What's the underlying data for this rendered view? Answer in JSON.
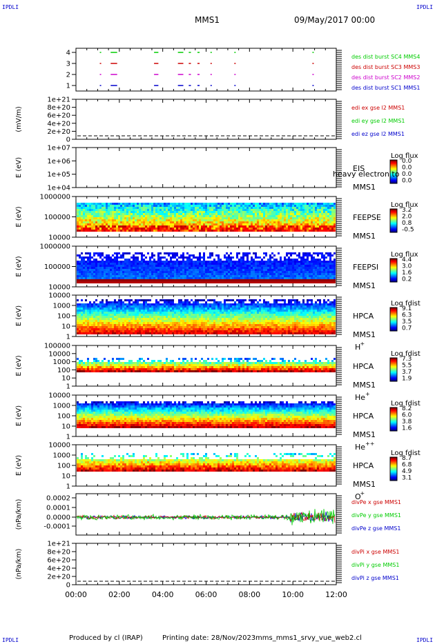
{
  "header": {
    "corner_label": "IPDLI",
    "spacecraft": "MMS1",
    "datetime": "09/May/2017 00:00"
  },
  "footer": {
    "produced_by": "Produced by cl (IRAP)",
    "printing_date": "Printing date: 28/Nov/2023",
    "filename": "mms_mms1_srvy_vue_web2.cl"
  },
  "colors": {
    "red": "#cc0000",
    "magenta": "#cc00cc",
    "green": "#00cc00",
    "blue": "#0000cc",
    "fill_blue": "#0000ff",
    "dark_red": "#990000"
  },
  "chart_data": {
    "x_axis": {
      "type": "time",
      "range": [
        "00:00",
        "12:00"
      ],
      "tick_labels": [
        "00:00",
        "02:00",
        "04:00",
        "06:00",
        "08:00",
        "10:00",
        "12:00"
      ]
    },
    "panels": [
      {
        "id": "burst",
        "type": "scatter",
        "ylim": [
          0.5,
          4.5
        ],
        "ytick_labels": [
          "4",
          "3",
          "2",
          "1"
        ],
        "ylabel": "",
        "series": [
          {
            "name": "des dist burst SC1 MMS1",
            "color": "blue",
            "y": 1
          },
          {
            "name": "des dist burst SC2 MMS2",
            "color": "magenta",
            "y": 2
          },
          {
            "name": "des dist burst SC3 MMS3",
            "color": "red",
            "y": 3
          },
          {
            "name": "des dist burst SC4 MMS4",
            "color": "green",
            "y": 4
          }
        ],
        "intervals_hours": [
          [
            1.1,
            1.15
          ],
          [
            1.6,
            1.9
          ],
          [
            3.6,
            3.8
          ],
          [
            4.7,
            4.95
          ],
          [
            5.2,
            5.3
          ],
          [
            5.6,
            5.7
          ],
          [
            6.2,
            6.25
          ],
          [
            7.3,
            7.35
          ],
          [
            10.9,
            10.95
          ]
        ]
      },
      {
        "id": "edi_e",
        "type": "line",
        "ylabel": "(mV/m)",
        "ytick_labels": [
          "1e+21",
          "8e+20",
          "6e+20",
          "4e+20",
          "2e+20",
          "0"
        ],
        "series": [
          {
            "name": "edi ex gse l2 MMS1",
            "color": "red"
          },
          {
            "name": "edi ey gse l2 MMS1",
            "color": "green"
          },
          {
            "name": "edi ez gse l2 MMS1",
            "color": "blue"
          }
        ]
      },
      {
        "id": "eis",
        "type": "heatmap",
        "ylabel": "E (eV)",
        "log_y": true,
        "ytick_labels": [
          "1e+07",
          "1e+06",
          "1e+05",
          "1e+04"
        ],
        "right_labels": [
          "EIS",
          "MMS1"
        ],
        "overlay_text": "heavy electron to",
        "colorbar": {
          "title": "Log flux",
          "ticks": [
            "0.0",
            "0.0",
            "0.0",
            "0.0"
          ]
        }
      },
      {
        "id": "feepse",
        "type": "heatmap",
        "ylabel": "E (eV)",
        "log_y": true,
        "ytick_labels": [
          "1000000",
          "100000",
          "10000"
        ],
        "right_labels": [
          "FEEPSE",
          "MMS1"
        ],
        "colorbar": {
          "title": "Log flux",
          "ticks": [
            "3.2",
            "2.0",
            "0.8",
            "-0.5"
          ]
        }
      },
      {
        "id": "feepsi",
        "type": "heatmap",
        "ylabel": "E (eV)",
        "log_y": true,
        "ytick_labels": [
          "1000000",
          "100000",
          "10000"
        ],
        "right_labels": [
          "FEEPSI",
          "MMS1"
        ],
        "colorbar": {
          "title": "Log flux",
          "ticks": [
            "4.4",
            "3.0",
            "1.6",
            "0.2"
          ]
        }
      },
      {
        "id": "hpca_h",
        "type": "heatmap",
        "ylabel": "E (eV)",
        "log_y": true,
        "ytick_labels": [
          "10000",
          "1000",
          "100",
          "10",
          "1"
        ],
        "right_labels": [
          "HPCA",
          "MMS1"
        ],
        "species": "H",
        "charge": "+",
        "colorbar": {
          "title": "Log fdist",
          "ticks": [
            "9.1",
            "6.3",
            "3.5",
            "0.7"
          ]
        }
      },
      {
        "id": "hpca_he",
        "type": "heatmap",
        "ylabel": "E (eV)",
        "log_y": true,
        "ytick_labels": [
          "100000",
          "10000",
          "1000",
          "100",
          "10",
          "1"
        ],
        "right_labels": [
          "HPCA",
          "MMS1"
        ],
        "species": "He",
        "charge": "+",
        "colorbar": {
          "title": "Log fdist",
          "ticks": [
            "7.3",
            "5.5",
            "3.7",
            "1.9"
          ]
        }
      },
      {
        "id": "hpca_hepp",
        "type": "heatmap",
        "ylabel": "E (eV)",
        "log_y": true,
        "ytick_labels": [
          "10000",
          "1000",
          "100",
          "10",
          "1"
        ],
        "right_labels": [
          "HPCA",
          "MMS1"
        ],
        "species": "He",
        "charge": "++",
        "colorbar": {
          "title": "Log fdist",
          "ticks": [
            "8.2",
            "6.0",
            "3.8",
            "1.6"
          ]
        }
      },
      {
        "id": "hpca_o",
        "type": "heatmap",
        "ylabel": "E (eV)",
        "log_y": true,
        "ytick_labels": [
          "10000",
          "1000",
          "100",
          "10",
          "1"
        ],
        "right_labels": [
          "HPCA",
          "MMS1"
        ],
        "species": "O",
        "charge": "+",
        "colorbar": {
          "title": "Log fdist",
          "ticks": [
            "8.7",
            "6.8",
            "4.9",
            "3.1"
          ]
        }
      },
      {
        "id": "divpe",
        "type": "line",
        "ylabel": "(nPa/km)",
        "ytick_labels": [
          "0.0002",
          "0.0001",
          "0.0000",
          "-0.0001"
        ],
        "ylim": [
          -0.00015,
          0.00028
        ],
        "series": [
          {
            "name": "divPe x gse MMS1",
            "color": "red"
          },
          {
            "name": "divPe y gse MMS1",
            "color": "green"
          },
          {
            "name": "divPe z gse MMS1",
            "color": "blue"
          }
        ]
      },
      {
        "id": "divpi",
        "type": "line",
        "ylabel": "(nPa/km)",
        "ytick_labels": [
          "1e+21",
          "8e+20",
          "6e+20",
          "4e+20",
          "2e+20",
          "0"
        ],
        "series": [
          {
            "name": "divPi x gse MMS1",
            "color": "red"
          },
          {
            "name": "divPi y gse MMS1",
            "color": "green"
          },
          {
            "name": "divPi z gse MMS1",
            "color": "blue"
          }
        ]
      }
    ]
  }
}
